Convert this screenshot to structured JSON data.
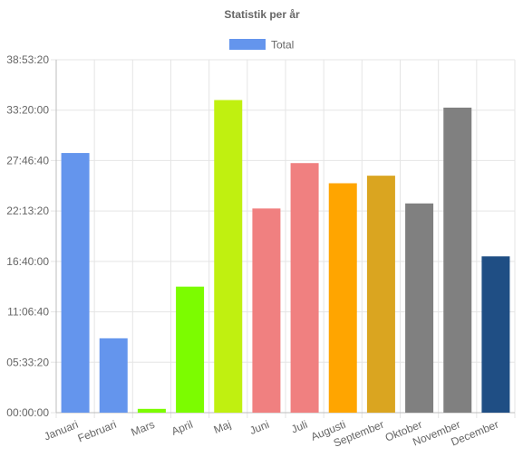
{
  "chart_data": {
    "type": "bar",
    "title": "Statistik per år",
    "legend": {
      "position": "top",
      "entries": [
        {
          "label": "Total",
          "color": "#6495ED"
        }
      ]
    },
    "categories": [
      "Januari",
      "Februari",
      "Mars",
      "April",
      "Maj",
      "Juni",
      "Juli",
      "Augusti",
      "September",
      "Oktober",
      "November",
      "December"
    ],
    "series": [
      {
        "name": "Total",
        "unit": "seconds",
        "values": [
          103000,
          29500,
          1500,
          50000,
          124000,
          81000,
          99000,
          91000,
          94000,
          83000,
          121000,
          62000
        ],
        "colors": [
          "#6495ED",
          "#6495ED",
          "#7CFC00",
          "#7CFC00",
          "#C0F010",
          "#F08080",
          "#F08080",
          "#FFA500",
          "#DAA520",
          "#808080",
          "#808080",
          "#1F4E84"
        ]
      }
    ],
    "y_axis": {
      "min": 0,
      "max": 140000,
      "tick_values": [
        0,
        20000,
        40000,
        60000,
        80000,
        100000,
        120000,
        140000
      ],
      "tick_labels": [
        "00:00:00",
        "05:33:20",
        "11:06:40",
        "16:40:00",
        "22:13:20",
        "27:46:40",
        "33:20:00",
        "38:53:20"
      ]
    },
    "grid": true
  }
}
